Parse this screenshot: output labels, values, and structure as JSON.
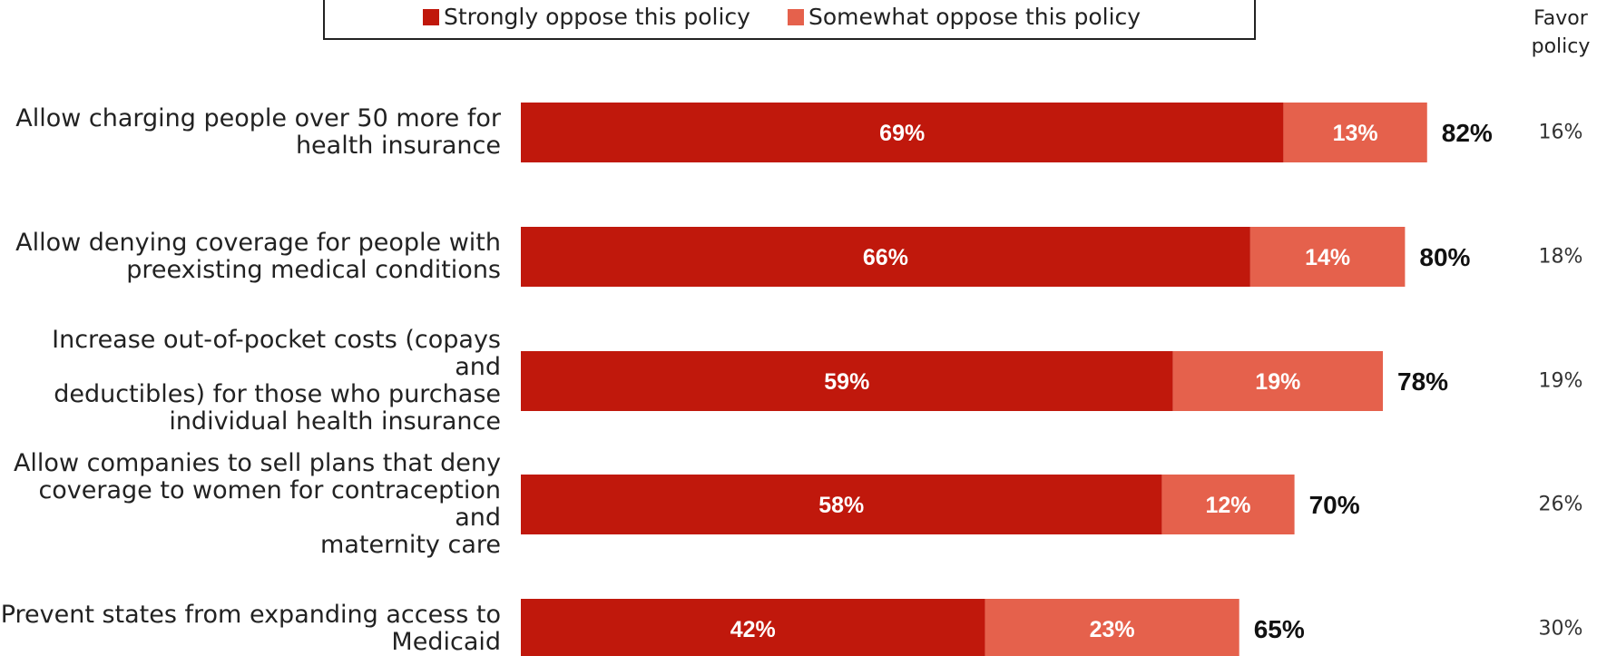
{
  "legend": {
    "strongly": "Strongly oppose this policy",
    "somewhat": "Somewhat oppose this policy"
  },
  "favor_header": "Favor\npolicy",
  "colors": {
    "strongly": "#c0180c",
    "somewhat": "#e5614c"
  },
  "chart_data": {
    "type": "bar",
    "orientation": "horizontal",
    "stacked": true,
    "categories": [
      "Allow charging people over 50 more for health insurance",
      "Allow denying coverage for people with preexisting medical conditions",
      "Increase out-of-pocket costs (copays and deductibles) for those who purchase individual health insurance",
      "Allow companies to sell plans that deny coverage to women for contraception and maternity care",
      "Prevent states from expanding access to Medicaid"
    ],
    "series": [
      {
        "name": "Strongly oppose this policy",
        "values": [
          69,
          66,
          59,
          58,
          42
        ]
      },
      {
        "name": "Somewhat oppose this policy",
        "values": [
          13,
          14,
          19,
          12,
          23
        ]
      }
    ],
    "totals": [
      82,
      80,
      78,
      70,
      65
    ],
    "favor": [
      16,
      18,
      19,
      26,
      30
    ],
    "value_suffix": "%",
    "legend_position": "top",
    "grid": false
  }
}
